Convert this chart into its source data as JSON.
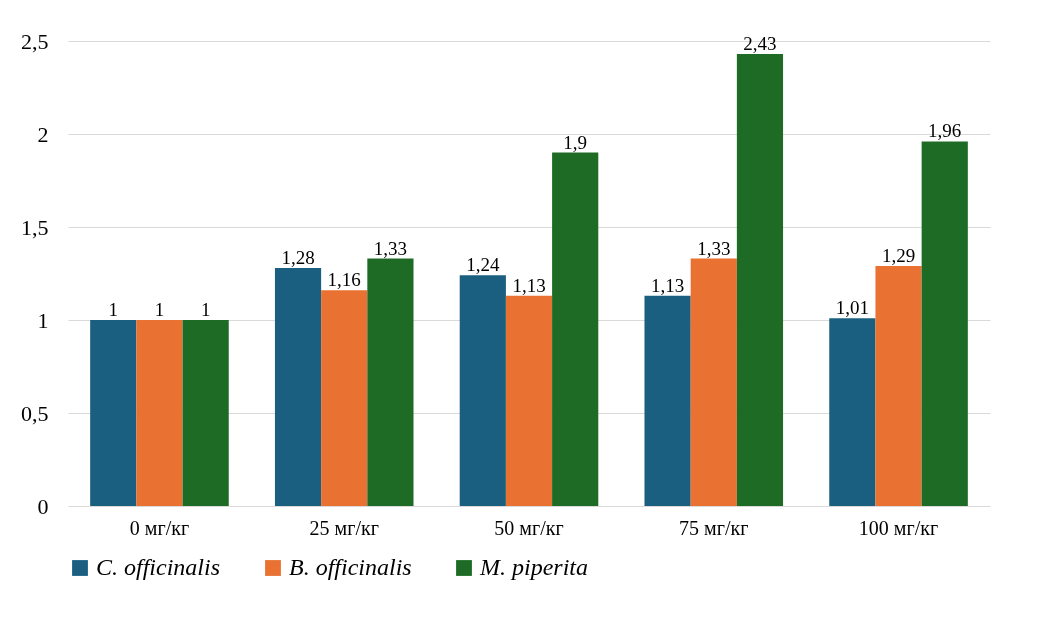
{
  "chart_data": {
    "type": "bar",
    "categories": [
      "0 мг/кг",
      "25 мг/кг",
      "50 мг/кг",
      "75 мг/кг",
      "100 мг/кг"
    ],
    "series": [
      {
        "name": "C. officinalis",
        "color": "#1b5f80",
        "values": [
          1,
          1.28,
          1.24,
          1.13,
          1.01
        ],
        "value_labels": [
          "1",
          "1,28",
          "1,24",
          "1,13",
          "1,01"
        ]
      },
      {
        "name": "B. officinalis",
        "color": "#e97132",
        "values": [
          1,
          1.16,
          1.13,
          1.33,
          1.29
        ],
        "value_labels": [
          "1",
          "1,16",
          "1,13",
          "1,33",
          "1,29"
        ]
      },
      {
        "name": "M. piperita",
        "color": "#1e6b26",
        "values": [
          1,
          1.33,
          1.9,
          2.43,
          1.96
        ],
        "value_labels": [
          "1",
          "1,33",
          "1,9",
          "2,43",
          "1,96"
        ]
      }
    ],
    "ylim": [
      0,
      2.5
    ],
    "yticks": [
      0,
      {
        "value": 0.5,
        "label": "0,5"
      },
      1,
      {
        "value": 1.5,
        "label": "1,5"
      },
      2,
      {
        "value": 2.5,
        "label": "2,5"
      }
    ],
    "grid": "y",
    "legend": "bottom"
  }
}
